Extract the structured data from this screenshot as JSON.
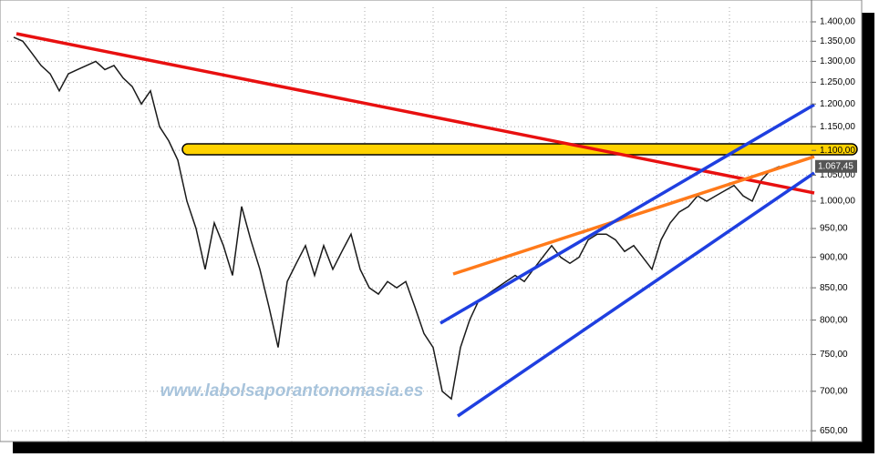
{
  "chart_data": {
    "type": "line",
    "log_scale": true,
    "grid": true,
    "watermark": "www.labolsaporantonomasia.es",
    "last_value": 1067.45,
    "last_value_label": "1.067,45",
    "ylim": [
      637,
      1429
    ],
    "yticks": [
      {
        "value": 650,
        "label": "650,00"
      },
      {
        "value": 700,
        "label": "700,00"
      },
      {
        "value": 750,
        "label": "750,00"
      },
      {
        "value": 800,
        "label": "800,00"
      },
      {
        "value": 850,
        "label": "850,00"
      },
      {
        "value": 900,
        "label": "900,00"
      },
      {
        "value": 950,
        "label": "950,00"
      },
      {
        "value": 1000,
        "label": "1.000,00"
      },
      {
        "value": 1050,
        "label": "1.050,00"
      },
      {
        "value": 1100,
        "label": "1.100,00"
      },
      {
        "value": 1150,
        "label": "1.150,00"
      },
      {
        "value": 1200,
        "label": "1.200,00"
      },
      {
        "value": 1250,
        "label": "1.250,00"
      },
      {
        "value": 1300,
        "label": "1.300,00"
      },
      {
        "value": 1350,
        "label": "1.350,00"
      },
      {
        "value": 1400,
        "label": "1.400,00"
      }
    ],
    "series": [
      {
        "color": "#1a1a1a",
        "values": [
          1360,
          1350,
          1320,
          1290,
          1270,
          1230,
          1270,
          1280,
          1290,
          1300,
          1280,
          1290,
          1260,
          1240,
          1200,
          1230,
          1150,
          1120,
          1080,
          1000,
          950,
          880,
          960,
          920,
          870,
          990,
          930,
          880,
          820,
          760,
          860,
          890,
          920,
          870,
          920,
          880,
          910,
          940,
          880,
          850,
          840,
          860,
          850,
          860,
          820,
          780,
          760,
          700,
          690,
          760,
          800,
          830,
          840,
          850,
          860,
          870,
          860,
          880,
          900,
          920,
          900,
          890,
          900,
          930,
          940,
          940,
          930,
          910,
          920,
          900,
          880,
          930,
          960,
          980,
          990,
          1010,
          1000,
          1010,
          1020,
          1030,
          1010,
          1000,
          1040,
          1060,
          1067.45
        ]
      }
    ]
  }
}
